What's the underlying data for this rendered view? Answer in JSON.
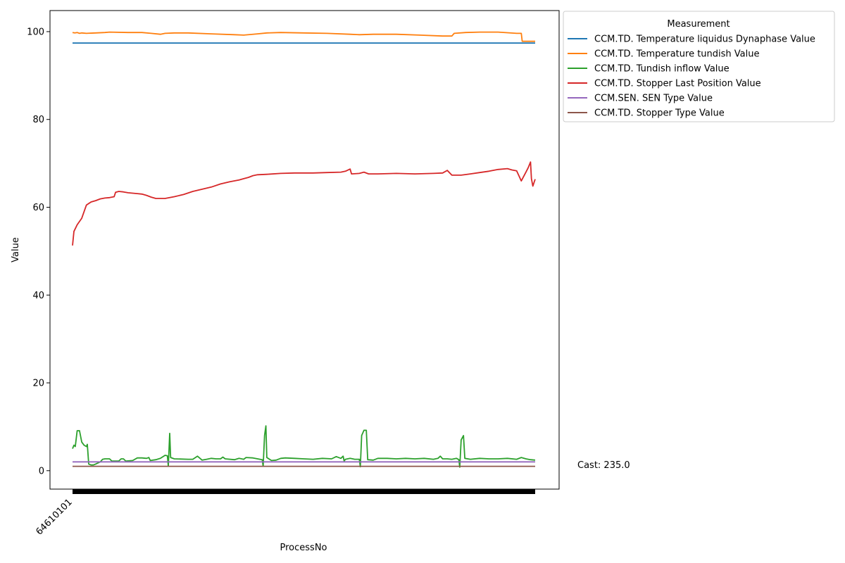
{
  "chart_data": {
    "type": "line",
    "title": "",
    "xlabel": "ProcessNo",
    "ylabel": "Value",
    "x_tick_labels": [
      "64610101"
    ],
    "y_ticks": [
      0,
      20,
      40,
      60,
      80,
      100
    ],
    "ylim": [
      -4.2,
      104.8
    ],
    "x_range": [
      0,
      100
    ],
    "grid": false,
    "legend": {
      "title": "Measurement",
      "placement": "outside-top-right"
    },
    "annotation": "Cast: 235.0",
    "series": [
      {
        "name": "CCM.TD. Temperature liquidus Dynaphase Value",
        "color": "#1f77b4",
        "points": [
          [
            0,
            97.4
          ],
          [
            100,
            97.4
          ]
        ]
      },
      {
        "name": "CCM.TD. Temperature tundish Value",
        "color": "#ff7f0e",
        "points": [
          [
            0,
            99.8
          ],
          [
            0.5,
            99.7
          ],
          [
            1,
            99.8
          ],
          [
            1.5,
            99.6
          ],
          [
            2,
            99.7
          ],
          [
            3,
            99.6
          ],
          [
            5,
            99.7
          ],
          [
            7,
            99.8
          ],
          [
            8,
            99.9
          ],
          [
            12,
            99.8
          ],
          [
            15,
            99.8
          ],
          [
            17,
            99.6
          ],
          [
            19,
            99.4
          ],
          [
            20,
            99.6
          ],
          [
            22,
            99.7
          ],
          [
            25,
            99.7
          ],
          [
            30,
            99.5
          ],
          [
            35,
            99.3
          ],
          [
            37,
            99.2
          ],
          [
            40,
            99.5
          ],
          [
            42,
            99.7
          ],
          [
            45,
            99.8
          ],
          [
            50,
            99.7
          ],
          [
            55,
            99.6
          ],
          [
            60,
            99.4
          ],
          [
            62,
            99.3
          ],
          [
            65,
            99.4
          ],
          [
            70,
            99.4
          ],
          [
            75,
            99.2
          ],
          [
            80,
            99.0
          ],
          [
            82,
            99.0
          ],
          [
            82.5,
            99.6
          ],
          [
            85,
            99.8
          ],
          [
            88,
            99.9
          ],
          [
            92,
            99.9
          ],
          [
            96,
            99.6
          ],
          [
            97,
            99.6
          ],
          [
            97.2,
            97.8
          ],
          [
            100,
            97.8
          ]
        ]
      },
      {
        "name": "CCM.TD. Tundish inflow Value",
        "color": "#2ca02c",
        "points": [
          [
            0,
            5
          ],
          [
            0.3,
            5.8
          ],
          [
            0.6,
            5.5
          ],
          [
            1,
            9.1
          ],
          [
            1.5,
            9.1
          ],
          [
            2,
            6.5
          ],
          [
            2.5,
            5.8
          ],
          [
            3,
            5.5
          ],
          [
            3.2,
            6
          ],
          [
            3.5,
            1.5
          ],
          [
            4,
            1.3
          ],
          [
            4.5,
            1.3
          ],
          [
            5,
            1.5
          ],
          [
            6,
            2.0
          ],
          [
            6.5,
            2.6
          ],
          [
            7,
            2.7
          ],
          [
            8,
            2.7
          ],
          [
            8.5,
            2.2
          ],
          [
            9,
            2.2
          ],
          [
            10,
            2.2
          ],
          [
            10.5,
            2.7
          ],
          [
            11,
            2.7
          ],
          [
            11.5,
            2.2
          ],
          [
            13,
            2.3
          ],
          [
            14,
            2.9
          ],
          [
            15,
            2.9
          ],
          [
            16,
            2.8
          ],
          [
            16.5,
            3.0
          ],
          [
            16.8,
            2.3
          ],
          [
            18,
            2.5
          ],
          [
            19,
            2.8
          ],
          [
            20,
            3.5
          ],
          [
            20.5,
            3.4
          ],
          [
            20.7,
            1.0
          ],
          [
            21,
            8.5
          ],
          [
            21.2,
            3.0
          ],
          [
            22,
            2.7
          ],
          [
            25,
            2.6
          ],
          [
            26,
            2.6
          ],
          [
            27,
            3.3
          ],
          [
            28,
            2.4
          ],
          [
            29,
            2.6
          ],
          [
            30,
            2.8
          ],
          [
            31,
            2.7
          ],
          [
            32,
            2.7
          ],
          [
            32.5,
            3.1
          ],
          [
            33,
            2.7
          ],
          [
            35,
            2.5
          ],
          [
            36,
            2.8
          ],
          [
            37,
            2.6
          ],
          [
            37.5,
            3.0
          ],
          [
            39,
            2.9
          ],
          [
            40,
            2.7
          ],
          [
            41,
            2.5
          ],
          [
            41.2,
            1.0
          ],
          [
            41.5,
            8.0
          ],
          [
            41.8,
            10.2
          ],
          [
            42,
            3.0
          ],
          [
            43,
            2.3
          ],
          [
            44,
            2.4
          ],
          [
            45,
            2.8
          ],
          [
            46,
            2.9
          ],
          [
            48,
            2.8
          ],
          [
            50,
            2.7
          ],
          [
            52,
            2.6
          ],
          [
            54,
            2.8
          ],
          [
            56,
            2.7
          ],
          [
            57,
            3.2
          ],
          [
            58,
            2.8
          ],
          [
            58.5,
            3.3
          ],
          [
            58.7,
            2.2
          ],
          [
            59,
            2.6
          ],
          [
            60,
            2.8
          ],
          [
            61,
            2.6
          ],
          [
            62,
            2.6
          ],
          [
            62.2,
            0.9
          ],
          [
            62.5,
            8.0
          ],
          [
            63,
            9.2
          ],
          [
            63.5,
            9.2
          ],
          [
            63.8,
            2.5
          ],
          [
            65,
            2.4
          ],
          [
            66,
            2.8
          ],
          [
            68,
            2.8
          ],
          [
            70,
            2.7
          ],
          [
            72,
            2.8
          ],
          [
            74,
            2.7
          ],
          [
            76,
            2.8
          ],
          [
            78,
            2.6
          ],
          [
            79,
            2.8
          ],
          [
            79.5,
            3.3
          ],
          [
            80,
            2.7
          ],
          [
            81,
            2.7
          ],
          [
            82,
            2.6
          ],
          [
            83,
            2.8
          ],
          [
            83.5,
            2.5
          ],
          [
            83.7,
            0.8
          ],
          [
            84,
            7.0
          ],
          [
            84.5,
            8.0
          ],
          [
            84.8,
            2.8
          ],
          [
            86,
            2.6
          ],
          [
            88,
            2.8
          ],
          [
            90,
            2.7
          ],
          [
            92,
            2.7
          ],
          [
            94,
            2.8
          ],
          [
            96,
            2.6
          ],
          [
            97,
            3.0
          ],
          [
            98,
            2.7
          ],
          [
            99,
            2.5
          ],
          [
            100,
            2.4
          ]
        ]
      },
      {
        "name": "CCM.TD. Stopper Last Position Value",
        "color": "#d62728",
        "points": [
          [
            0,
            51.3
          ],
          [
            0.3,
            54.5
          ],
          [
            1,
            56.0
          ],
          [
            2,
            57.5
          ],
          [
            2.5,
            59.0
          ],
          [
            3,
            60.5
          ],
          [
            4,
            61.2
          ],
          [
            5,
            61.5
          ],
          [
            6,
            61.9
          ],
          [
            7,
            62.1
          ],
          [
            8,
            62.2
          ],
          [
            9,
            62.4
          ],
          [
            9.3,
            63.4
          ],
          [
            10,
            63.6
          ],
          [
            11,
            63.5
          ],
          [
            12,
            63.3
          ],
          [
            14,
            63.1
          ],
          [
            15,
            63.0
          ],
          [
            16,
            62.7
          ],
          [
            17,
            62.3
          ],
          [
            18,
            62.0
          ],
          [
            20,
            62.0
          ],
          [
            22,
            62.4
          ],
          [
            24,
            62.9
          ],
          [
            26,
            63.6
          ],
          [
            28,
            64.1
          ],
          [
            30,
            64.6
          ],
          [
            32,
            65.3
          ],
          [
            34,
            65.8
          ],
          [
            36,
            66.2
          ],
          [
            37,
            66.5
          ],
          [
            38,
            66.8
          ],
          [
            39,
            67.2
          ],
          [
            40,
            67.4
          ],
          [
            42,
            67.5
          ],
          [
            45,
            67.7
          ],
          [
            48,
            67.8
          ],
          [
            52,
            67.8
          ],
          [
            55,
            67.9
          ],
          [
            58,
            68.0
          ],
          [
            59,
            68.2
          ],
          [
            60,
            68.7
          ],
          [
            60.3,
            67.6
          ],
          [
            62,
            67.7
          ],
          [
            63,
            68.0
          ],
          [
            64,
            67.6
          ],
          [
            66,
            67.6
          ],
          [
            70,
            67.7
          ],
          [
            74,
            67.6
          ],
          [
            78,
            67.7
          ],
          [
            80,
            67.8
          ],
          [
            81,
            68.4
          ],
          [
            82,
            67.3
          ],
          [
            84,
            67.3
          ],
          [
            86,
            67.6
          ],
          [
            88,
            67.9
          ],
          [
            90,
            68.2
          ],
          [
            92,
            68.6
          ],
          [
            94,
            68.8
          ],
          [
            95,
            68.5
          ],
          [
            96,
            68.3
          ],
          [
            97,
            66.0
          ],
          [
            97.5,
            67.0
          ],
          [
            98,
            68.0
          ],
          [
            98.5,
            69.0
          ],
          [
            99,
            70.3
          ],
          [
            99.2,
            66.5
          ],
          [
            99.5,
            64.8
          ],
          [
            100,
            66.4
          ]
        ]
      },
      {
        "name": "CCM.SEN. SEN Type Value",
        "color": "#9467bd",
        "points": [
          [
            0,
            2.0
          ],
          [
            100,
            2.0
          ]
        ]
      },
      {
        "name": "CCM.TD. Stopper Type Value",
        "color": "#8c564b",
        "points": [
          [
            0,
            1.0
          ],
          [
            100,
            1.0
          ]
        ]
      }
    ]
  }
}
